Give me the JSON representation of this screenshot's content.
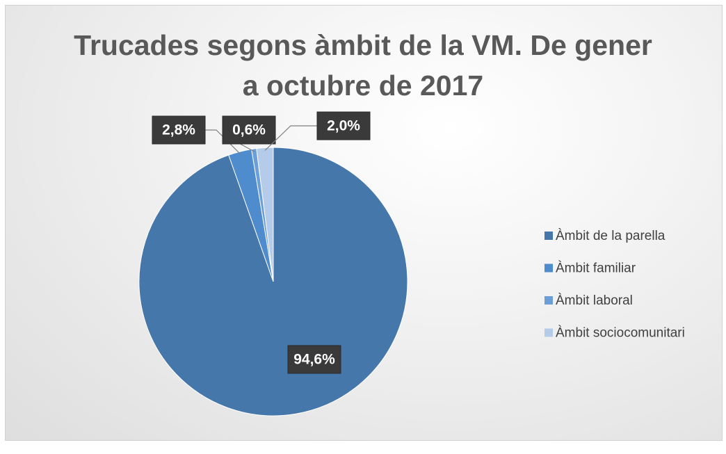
{
  "chart_data": {
    "type": "pie",
    "title": "Trucades segons àmbit de la VM. De gener a octubre de 2017",
    "categories": [
      "Àmbit de la parella",
      "Àmbit familiar",
      "Àmbit laboral",
      "Àmbit sociocomunitari"
    ],
    "values": [
      94.6,
      2.8,
      0.6,
      2.0
    ],
    "value_labels": [
      "94,6%",
      "2,8%",
      "0,6%",
      "2,0%"
    ],
    "colors": [
      "#4677aa",
      "#4e8ccd",
      "#6c9fda",
      "#b5cbea"
    ],
    "legend": "right"
  }
}
